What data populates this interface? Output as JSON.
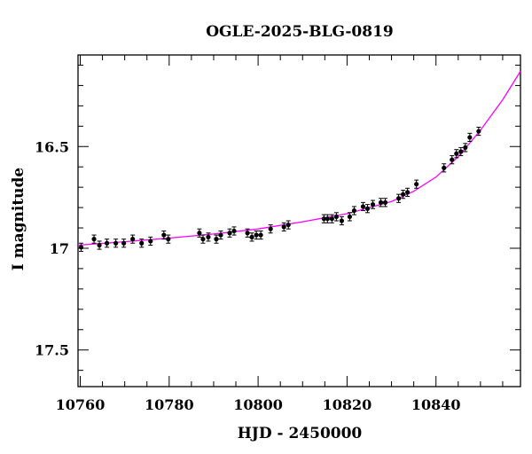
{
  "chart_data": {
    "type": "scatter",
    "title": "OGLE-2025-BLG-0819",
    "xlabel": "HJD - 2450000",
    "ylabel": "I magnitude",
    "xlim": [
      10759.5,
      10859
    ],
    "ylim": [
      17.68,
      16.05
    ],
    "y_inverted": true,
    "x_major_ticks": [
      10760,
      10780,
      10800,
      10820,
      10840
    ],
    "x_minor_step": 5,
    "y_major_ticks": [
      16.5,
      17,
      17.5
    ],
    "y_tick_labels": [
      "16.5",
      "17",
      "17.5"
    ],
    "y_minor_step": 0.1,
    "grid": false,
    "model_color": "#ff00ff",
    "point_color": "#000000",
    "series": [
      {
        "type": "scatter",
        "x": [
          10760.2,
          10763.1,
          10764.3,
          10766.0,
          10768.0,
          10769.8,
          10771.8,
          10773.8,
          10775.8,
          10778.8,
          10779.8,
          10786.8,
          10787.6,
          10788.8,
          10790.6,
          10791.6,
          10793.6,
          10794.6,
          10797.6,
          10798.6,
          10799.6,
          10800.6,
          10802.8,
          10805.8,
          10806.8,
          10814.8,
          10815.6,
          10816.6,
          10817.6,
          10818.8,
          10820.6,
          10821.6,
          10823.6,
          10824.6,
          10825.8,
          10827.6,
          10828.6,
          10831.6,
          10832.6,
          10833.6,
          10835.6,
          10841.8,
          10843.6,
          10844.6,
          10845.6,
          10846.6,
          10847.6,
          10849.6
        ],
        "y": [
          16.995,
          16.955,
          16.985,
          16.975,
          16.975,
          16.975,
          16.955,
          16.975,
          16.965,
          16.935,
          16.955,
          16.925,
          16.955,
          16.945,
          16.955,
          16.935,
          16.925,
          16.915,
          16.925,
          16.945,
          16.935,
          16.935,
          16.905,
          16.895,
          16.885,
          16.855,
          16.855,
          16.855,
          16.845,
          16.865,
          16.845,
          16.815,
          16.795,
          16.805,
          16.785,
          16.775,
          16.775,
          16.755,
          16.735,
          16.725,
          16.685,
          16.605,
          16.565,
          16.535,
          16.525,
          16.505,
          16.455,
          16.425
        ],
        "error": 0.02
      },
      {
        "type": "line",
        "x": [
          10759.5,
          10770,
          10780,
          10790,
          10800,
          10810,
          10820,
          10830,
          10835,
          10840,
          10845,
          10850,
          10855,
          10859
        ],
        "y": [
          16.985,
          16.968,
          16.95,
          16.93,
          16.905,
          16.87,
          16.83,
          16.77,
          16.72,
          16.65,
          16.55,
          16.42,
          16.27,
          16.13
        ]
      }
    ]
  }
}
